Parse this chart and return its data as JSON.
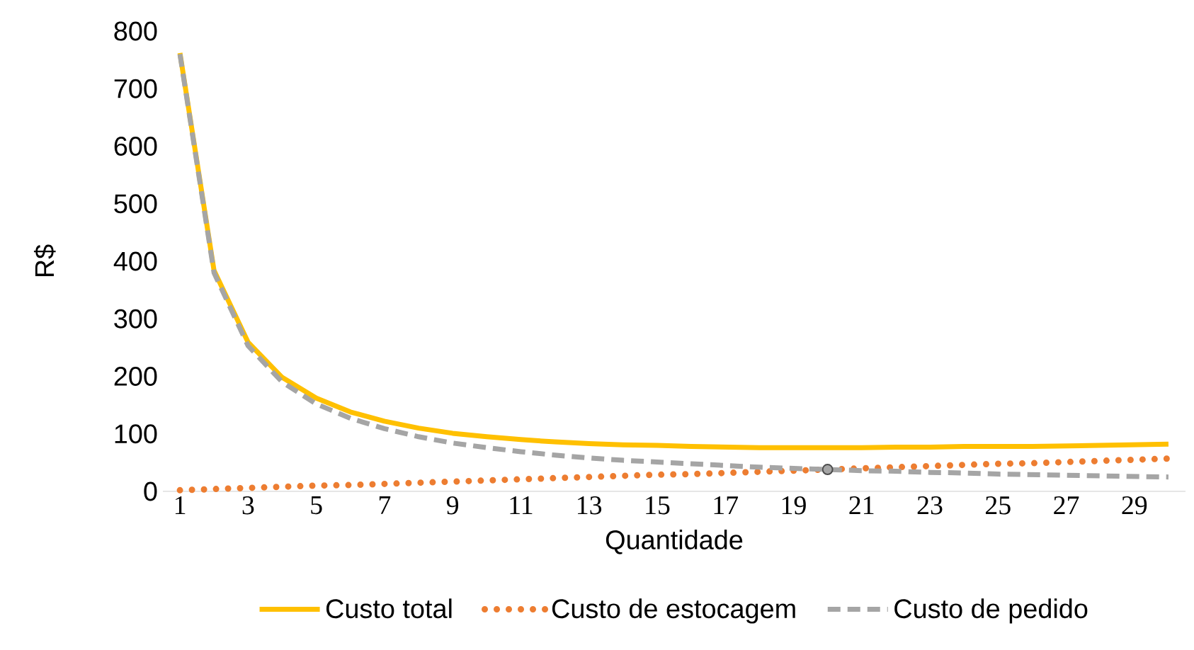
{
  "chart_data": {
    "type": "line",
    "xlabel": "Quantidade",
    "ylabel": "R$",
    "x": [
      1,
      2,
      3,
      4,
      5,
      6,
      7,
      8,
      9,
      10,
      11,
      12,
      13,
      14,
      15,
      16,
      17,
      18,
      19,
      20,
      21,
      22,
      23,
      24,
      25,
      26,
      27,
      28,
      29,
      30
    ],
    "xlim": [
      0.5,
      30.5
    ],
    "xticks": [
      1,
      3,
      5,
      7,
      9,
      11,
      13,
      15,
      17,
      19,
      21,
      23,
      25,
      27,
      29
    ],
    "ylim": [
      0,
      800
    ],
    "yticks": [
      0,
      100,
      200,
      300,
      400,
      500,
      600,
      700,
      800
    ],
    "grid": false,
    "legend": "bottom",
    "marker": "none",
    "series": [
      {
        "name": "Custo total",
        "color": "#ffc000",
        "line_style": "solid",
        "values": [
          762,
          384,
          259,
          198,
          162,
          138,
          122,
          110,
          101,
          95,
          90,
          86,
          83,
          81,
          80,
          78,
          77,
          76,
          76,
          76,
          76,
          77,
          77,
          78,
          78,
          78,
          79,
          80,
          81,
          82
        ]
      },
      {
        "name": "Custo de estocagem",
        "color": "#ed7d31",
        "line_style": "dotted",
        "values": [
          2,
          4,
          6,
          8,
          10,
          11,
          13,
          15,
          17,
          19,
          21,
          23,
          25,
          27,
          29,
          30,
          32,
          34,
          36,
          38,
          40,
          42,
          44,
          46,
          48,
          49,
          51,
          53,
          55,
          57
        ]
      },
      {
        "name": "Custo de pedido",
        "color": "#a5a5a5",
        "line_style": "dashed",
        "values": [
          760,
          380,
          253,
          190,
          152,
          127,
          109,
          95,
          84,
          76,
          69,
          63,
          58,
          54,
          51,
          48,
          45,
          42,
          40,
          38,
          36,
          35,
          33,
          32,
          30,
          29,
          28,
          27,
          26,
          25
        ]
      },
      {
        "type": "scatter",
        "marker": "circle",
        "color": "#a5a5a5",
        "x": [
          20
        ],
        "values": [
          38
        ]
      }
    ]
  }
}
